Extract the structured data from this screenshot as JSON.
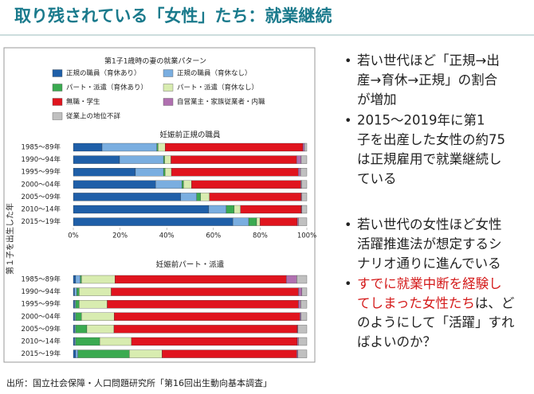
{
  "title": "取り残されている「女性」たち：就業継続",
  "shared_ylabel": "第１子を出生した年",
  "source": "出所：国立社会保障・人口問題研究所「第16回出生動向基本調査」",
  "bullets": [
    {
      "lines": [
        "若い世代ほど「正規→出",
        "産→育休→正規」の割合",
        "が増加"
      ]
    },
    {
      "lines": [
        "2015～2019年に第1",
        "子を出産した女性の約75",
        "は正規雇用で就業継続し",
        "ている"
      ]
    },
    {
      "lines": [
        "若い世代の女性ほど女性",
        "活躍推進法が想定するシ",
        "ナリオ通りに進んでいる"
      ]
    },
    {
      "highlight_lines": [
        "すでに就業中断を経験し",
        "てしまった女性たち"
      ],
      "lines": [
        "は、ど",
        "のようにして「活躍」すれ",
        "ばよいのか？"
      ]
    }
  ],
  "chart_data": [
    {
      "type": "stacked-barh",
      "legend_title": "第1子1歳時の妻の就業パターン",
      "title": "妊娠前正規の職員",
      "categories": [
        "1985～89年",
        "1990～94年",
        "1995～99年",
        "2000～04年",
        "2005～09年",
        "2010～14年",
        "2015～19年"
      ],
      "xlim": [
        0,
        100
      ],
      "xticks": [
        {
          "value": 0,
          "label": "0%"
        },
        {
          "value": 20,
          "label": "20%"
        },
        {
          "value": 40,
          "label": "40%"
        },
        {
          "value": 60,
          "label": "60%"
        },
        {
          "value": 80,
          "label": "80%"
        },
        {
          "value": 100,
          "label": "100%"
        }
      ],
      "series": [
        {
          "name": "正規の職員（育休あり）",
          "color": "#1f5fa8",
          "values": [
            12.3,
            19.8,
            26.6,
            35.2,
            46,
            58,
            68.3
          ]
        },
        {
          "name": "正規の職員（育休なし）",
          "color": "#7aaee0",
          "values": [
            23.5,
            18.8,
            12,
            11.3,
            6.8,
            7.5,
            6.8
          ]
        },
        {
          "name": "パート・派遣（育休あり）",
          "color": "#3aaa50",
          "values": [
            0.5,
            0.5,
            0.7,
            0.7,
            1.7,
            3.4,
            3.4
          ]
        },
        {
          "name": "パート・派遣（育休なし）",
          "color": "#d8ecb0",
          "values": [
            3,
            2.7,
            2.7,
            3.4,
            3.8,
            2.7,
            1.4
          ]
        },
        {
          "name": "無職・学生",
          "color": "#e0141e",
          "values": [
            59,
            53.8,
            54.3,
            46.8,
            39.2,
            26,
            16
          ]
        },
        {
          "name": "自営業主・家族従業者・内職",
          "color": "#b070b0",
          "values": [
            0.7,
            2,
            1,
            0.3,
            0.3,
            0.3,
            0.5
          ]
        },
        {
          "name": "従業上の地位不詳",
          "color": "#c0c0c0",
          "values": [
            1,
            2.4,
            2.7,
            2.3,
            2.2,
            2.1,
            3.6
          ]
        }
      ]
    },
    {
      "type": "stacked-barh",
      "title": "妊娠前パート・派遣",
      "categories": [
        "1985～89年",
        "1990～94年",
        "1995～99年",
        "2000～04年",
        "2005～09年",
        "2010～14年",
        "2015～19年"
      ],
      "xlim": [
        0,
        100
      ],
      "series": [
        {
          "name": "正規の職員（育休あり）",
          "color": "#1f5fa8",
          "values": [
            1,
            0.5,
            0.5,
            0.5,
            0.5,
            0.5,
            1
          ]
        },
        {
          "name": "正規の職員（育休なし）",
          "color": "#7aaee0",
          "values": [
            2,
            1,
            0.5,
            0.5,
            0.5,
            0.5,
            1
          ]
        },
        {
          "name": "パート・派遣（育休あり）",
          "color": "#3aaa50",
          "values": [
            0.5,
            1,
            1.5,
            2.5,
            4.8,
            10.3,
            22
          ]
        },
        {
          "name": "パート・派遣（育休なし）",
          "color": "#d8ecb0",
          "values": [
            14.3,
            13.7,
            12,
            14,
            11.6,
            13.6,
            14
          ]
        },
        {
          "name": "無職・学生",
          "color": "#e0141e",
          "values": [
            73.4,
            80.2,
            81.9,
            79.5,
            78.5,
            71,
            57.7
          ]
        },
        {
          "name": "自営業主・家族従業者・内職",
          "color": "#b070b0",
          "values": [
            4.5,
            1.5,
            1,
            0.5,
            0.3,
            0.5,
            0.5
          ]
        },
        {
          "name": "従業上の地位不詳",
          "color": "#c0c0c0",
          "values": [
            4.3,
            2.1,
            2.6,
            2.5,
            3.8,
            3.6,
            3.8
          ]
        }
      ]
    }
  ]
}
